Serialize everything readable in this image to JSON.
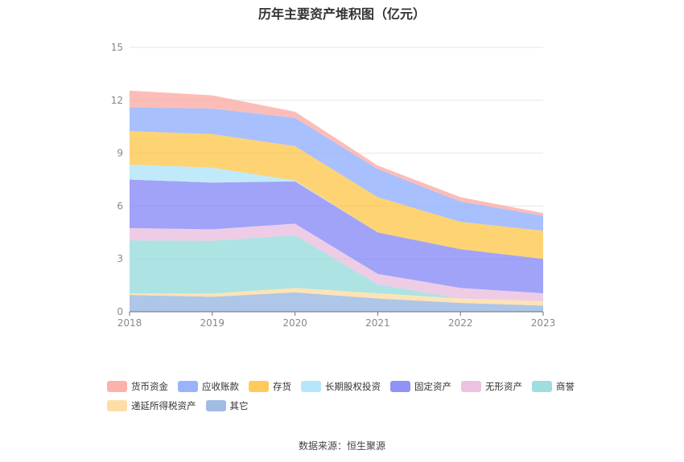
{
  "chart_data": {
    "type": "area",
    "title": "历年主要资产堆积图（亿元）",
    "x": [
      "2018",
      "2019",
      "2020",
      "2021",
      "2022",
      "2023"
    ],
    "ylim": [
      0,
      15
    ],
    "yticks": [
      0,
      3,
      6,
      9,
      12,
      15
    ],
    "grid": true,
    "legend_position": "bottom",
    "source": "数据来源：恒生聚源",
    "series": [
      {
        "name": "其它",
        "color": "#8fb0de",
        "values": [
          0.95,
          0.85,
          1.1,
          0.75,
          0.5,
          0.35
        ]
      },
      {
        "name": "递延所得税资产",
        "color": "#fed898",
        "values": [
          0.1,
          0.18,
          0.25,
          0.3,
          0.25,
          0.25
        ]
      },
      {
        "name": "商誉",
        "color": "#8dd8d8",
        "values": [
          3.0,
          3.0,
          3.0,
          0.5,
          0.0,
          0.0
        ]
      },
      {
        "name": "无形资产",
        "color": "#e8b8dc",
        "values": [
          0.7,
          0.65,
          0.65,
          0.6,
          0.6,
          0.45
        ]
      },
      {
        "name": "固定资产",
        "color": "#7b7ff5",
        "values": [
          2.75,
          2.65,
          2.4,
          2.35,
          2.2,
          1.95
        ]
      },
      {
        "name": "长期股权投资",
        "color": "#a8e2f8",
        "values": [
          0.85,
          0.85,
          0.05,
          0.0,
          0.0,
          0.0
        ]
      },
      {
        "name": "存货",
        "color": "#fec23e",
        "values": [
          1.9,
          1.9,
          1.95,
          2.0,
          1.55,
          1.6
        ]
      },
      {
        "name": "应收账款",
        "color": "#87a7fc",
        "values": [
          1.35,
          1.45,
          1.6,
          1.6,
          1.15,
          0.85
        ]
      },
      {
        "name": "货币资金",
        "color": "#fba39c",
        "values": [
          0.95,
          0.75,
          0.35,
          0.2,
          0.25,
          0.15
        ]
      }
    ],
    "legend_order": [
      "货币资金",
      "应收账款",
      "存货",
      "长期股权投资",
      "固定资产",
      "无形资产",
      "商誉",
      "递延所得税资产",
      "其它"
    ]
  }
}
